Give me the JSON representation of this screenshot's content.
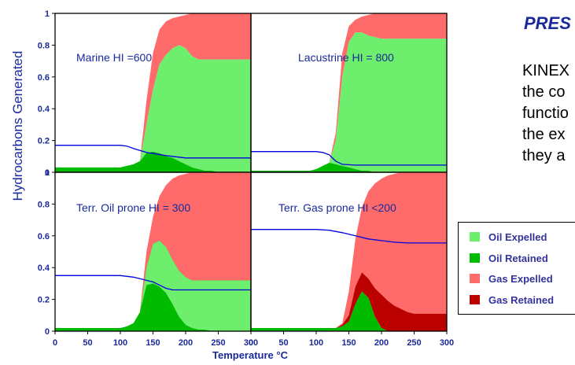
{
  "slide": {
    "title": "PRES",
    "text_lines": [
      "KINEX",
      "the co",
      "functio",
      "the ex",
      "they a"
    ]
  },
  "chart_data": {
    "type": "area",
    "ylabel": "Hydrocarbons Generated",
    "xlabel": "Temperature °C",
    "xlim": [
      0,
      300
    ],
    "ylim": [
      0,
      1
    ],
    "x_ticks": [
      0,
      50,
      100,
      150,
      200,
      250,
      300
    ],
    "y_ticks": [
      0,
      0.2,
      0.4,
      0.6,
      0.8,
      1
    ],
    "y_tick_labels": [
      "0",
      "0.2",
      "0.4",
      "0.6",
      "0.8",
      "1"
    ],
    "legend": [
      {
        "name": "Oil Expelled",
        "color": "#6dee6d"
      },
      {
        "name": "Oil Retained",
        "color": "#00bb00"
      },
      {
        "name": "Gas Expelled",
        "color": "#ff6b6b"
      },
      {
        "name": "Gas Retained",
        "color": "#bb0000"
      }
    ],
    "line_color": "#0000dd",
    "panels": [
      {
        "label": "Marine HI =600",
        "x": [
          0,
          100,
          110,
          120,
          130,
          140,
          150,
          160,
          170,
          180,
          190,
          200,
          210,
          220,
          230,
          240,
          250,
          260,
          270,
          300
        ],
        "oil_retained": [
          0.03,
          0.03,
          0.04,
          0.05,
          0.07,
          0.12,
          0.13,
          0.12,
          0.1,
          0.09,
          0.07,
          0.05,
          0.03,
          0.02,
          0.01,
          0.01,
          0,
          0,
          0,
          0
        ],
        "oil_total": [
          0.03,
          0.03,
          0.04,
          0.05,
          0.07,
          0.3,
          0.52,
          0.68,
          0.74,
          0.78,
          0.8,
          0.78,
          0.73,
          0.71,
          0.71,
          0.71,
          0.71,
          0.71,
          0.71,
          0.71
        ],
        "gas_retained": [
          0.03,
          0.03,
          0.04,
          0.05,
          0.07,
          0.3,
          0.52,
          0.68,
          0.74,
          0.78,
          0.8,
          0.78,
          0.73,
          0.71,
          0.71,
          0.71,
          0.71,
          0.71,
          0.71,
          0.71
        ],
        "total": [
          0.03,
          0.03,
          0.04,
          0.05,
          0.07,
          0.45,
          0.75,
          0.9,
          0.95,
          0.97,
          0.98,
          0.99,
          1,
          1,
          1,
          1,
          1,
          1,
          1,
          1
        ],
        "line_x": [
          0,
          100,
          110,
          120,
          140,
          170,
          200,
          300
        ],
        "line_y": [
          0.17,
          0.17,
          0.165,
          0.15,
          0.125,
          0.105,
          0.09,
          0.09
        ]
      },
      {
        "label": "Lacustrine HI  = 800",
        "x": [
          0,
          90,
          100,
          110,
          120,
          130,
          140,
          150,
          160,
          170,
          180,
          190,
          200,
          220,
          240,
          260,
          280,
          300
        ],
        "oil_retained": [
          0.01,
          0.01,
          0.02,
          0.04,
          0.06,
          0.05,
          0.04,
          0.03,
          0.02,
          0.01,
          0.01,
          0,
          0,
          0,
          0,
          0,
          0,
          0
        ],
        "oil_total": [
          0.01,
          0.01,
          0.02,
          0.04,
          0.06,
          0.2,
          0.6,
          0.82,
          0.88,
          0.88,
          0.86,
          0.85,
          0.84,
          0.84,
          0.84,
          0.84,
          0.84,
          0.84
        ],
        "gas_retained": [
          0.01,
          0.01,
          0.02,
          0.04,
          0.06,
          0.2,
          0.6,
          0.82,
          0.88,
          0.88,
          0.86,
          0.85,
          0.84,
          0.84,
          0.84,
          0.84,
          0.84,
          0.84
        ],
        "total": [
          0.01,
          0.01,
          0.02,
          0.04,
          0.06,
          0.25,
          0.75,
          0.92,
          0.96,
          0.98,
          0.99,
          1,
          1,
          1,
          1,
          1,
          1,
          1
        ],
        "line_x": [
          0,
          100,
          110,
          120,
          130,
          140,
          160,
          200,
          300
        ],
        "line_y": [
          0.13,
          0.13,
          0.125,
          0.11,
          0.07,
          0.05,
          0.045,
          0.045,
          0.045
        ]
      },
      {
        "label": "Terr. Oil prone HI  = 300",
        "x": [
          0,
          100,
          110,
          120,
          130,
          140,
          150,
          160,
          170,
          180,
          190,
          200,
          210,
          220,
          230,
          240,
          250,
          260,
          280,
          300
        ],
        "oil_retained": [
          0.02,
          0.02,
          0.03,
          0.05,
          0.12,
          0.29,
          0.3,
          0.28,
          0.24,
          0.17,
          0.09,
          0.04,
          0.02,
          0.01,
          0.01,
          0,
          0,
          0,
          0,
          0
        ],
        "oil_total": [
          0.02,
          0.02,
          0.03,
          0.05,
          0.12,
          0.4,
          0.55,
          0.57,
          0.53,
          0.45,
          0.38,
          0.34,
          0.32,
          0.32,
          0.32,
          0.32,
          0.32,
          0.32,
          0.32,
          0.32
        ],
        "gas_retained": [
          0.02,
          0.02,
          0.03,
          0.05,
          0.12,
          0.3,
          0.32,
          0.3,
          0.26,
          0.19,
          0.11,
          0.05,
          0.03,
          0.02,
          0.02,
          0.02,
          0.02,
          0.02,
          0.02,
          0.02
        ],
        "total": [
          0.02,
          0.02,
          0.03,
          0.05,
          0.12,
          0.5,
          0.72,
          0.85,
          0.92,
          0.96,
          0.98,
          0.99,
          1,
          1,
          1,
          1,
          1,
          1,
          1,
          1
        ],
        "line_x": [
          0,
          100,
          110,
          120,
          130,
          140,
          150,
          160,
          170,
          180,
          190,
          200,
          300
        ],
        "line_y": [
          0.35,
          0.35,
          0.345,
          0.34,
          0.33,
          0.32,
          0.31,
          0.29,
          0.27,
          0.26,
          0.26,
          0.26,
          0.26
        ]
      },
      {
        "label": "Terr. Gas prone HI  <200",
        "x": [
          0,
          120,
          130,
          140,
          150,
          160,
          170,
          180,
          190,
          200,
          210,
          220,
          230,
          240,
          250,
          260,
          270,
          280,
          300
        ],
        "oil_retained": [
          0.02,
          0.02,
          0.02,
          0.03,
          0.06,
          0.17,
          0.25,
          0.21,
          0.09,
          0.02,
          0,
          0,
          0,
          0,
          0,
          0,
          0,
          0,
          0
        ],
        "oil_total": [
          0.02,
          0.02,
          0.02,
          0.03,
          0.06,
          0.17,
          0.25,
          0.21,
          0.09,
          0.02,
          0,
          0,
          0,
          0,
          0,
          0,
          0,
          0,
          0
        ],
        "gas_retained": [
          0.02,
          0.02,
          0.02,
          0.04,
          0.1,
          0.28,
          0.37,
          0.33,
          0.27,
          0.23,
          0.19,
          0.16,
          0.14,
          0.12,
          0.11,
          0.11,
          0.11,
          0.11,
          0.11
        ],
        "total": [
          0.02,
          0.02,
          0.02,
          0.05,
          0.25,
          0.58,
          0.78,
          0.88,
          0.93,
          0.96,
          0.98,
          0.99,
          1,
          1,
          1,
          1,
          1,
          1,
          1
        ],
        "line_x": [
          0,
          100,
          120,
          140,
          160,
          180,
          200,
          220,
          240,
          300
        ],
        "line_y": [
          0.64,
          0.64,
          0.635,
          0.62,
          0.6,
          0.58,
          0.57,
          0.56,
          0.555,
          0.555
        ]
      }
    ]
  }
}
